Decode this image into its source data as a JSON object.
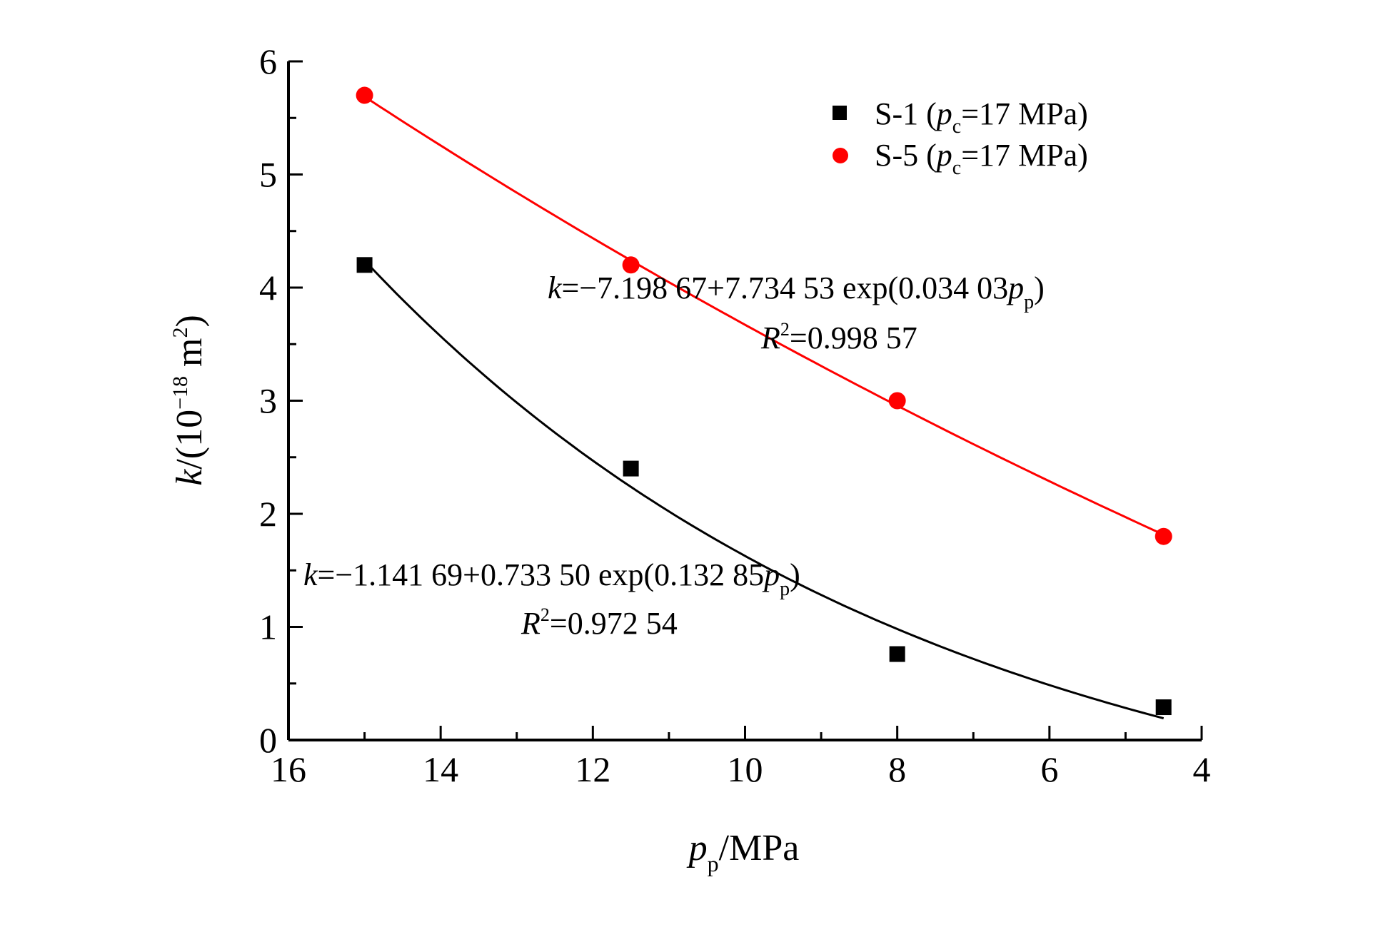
{
  "chart_data": {
    "type": "scatter",
    "title": "",
    "xlabel": {
      "var": "p",
      "sub": "p",
      "unit": "/MPa"
    },
    "ylabel": {
      "var": "k",
      "rest": "/(10",
      "exp": "−18",
      "unit": " m",
      "unit_exp": "2",
      "close": ")"
    },
    "xlim": [
      16,
      4
    ],
    "ylim": [
      0,
      6
    ],
    "x_ticks": [
      "16",
      "14",
      "12",
      "10",
      "8",
      "6",
      "4"
    ],
    "y_ticks": [
      "0",
      "1",
      "2",
      "3",
      "4",
      "5",
      "6"
    ],
    "grid": false,
    "legend_position": "top-right",
    "series": [
      {
        "name": "S-1",
        "legend": {
          "prefix": "S-1 (",
          "var": "p",
          "sub": "c",
          "suffix": "=17 MPa)"
        },
        "color": "#000000",
        "marker": "square",
        "x": [
          15,
          11.5,
          8,
          4.5
        ],
        "y": [
          4.2,
          2.4,
          0.76,
          0.29
        ],
        "fit": {
          "a": -1.14169,
          "b": 0.7335,
          "c": 0.13285
        },
        "equation": {
          "k": "k",
          "body": "=−1.141 69+0.733 50 exp(0.132 85",
          "var": "p",
          "sub": "p",
          "close": ")"
        },
        "r2": {
          "R": "R",
          "exp": "2",
          "value": "=0.972 54"
        }
      },
      {
        "name": "S-5",
        "legend": {
          "prefix": "S-5 (",
          "var": "p",
          "sub": "c",
          "suffix": "=17 MPa)"
        },
        "color": "#ff0000",
        "marker": "circle",
        "x": [
          15,
          11.5,
          8,
          4.5
        ],
        "y": [
          5.7,
          4.2,
          3.0,
          1.8
        ],
        "fit": {
          "a": -7.19867,
          "b": 7.73453,
          "c": 0.03403
        },
        "equation": {
          "k": "k",
          "body": "=−7.198 67+7.734 53 exp(0.034 03",
          "var": "p",
          "sub": "p",
          "close": ")"
        },
        "r2": {
          "R": "R",
          "exp": "2",
          "value": "=0.998 57"
        }
      }
    ]
  }
}
